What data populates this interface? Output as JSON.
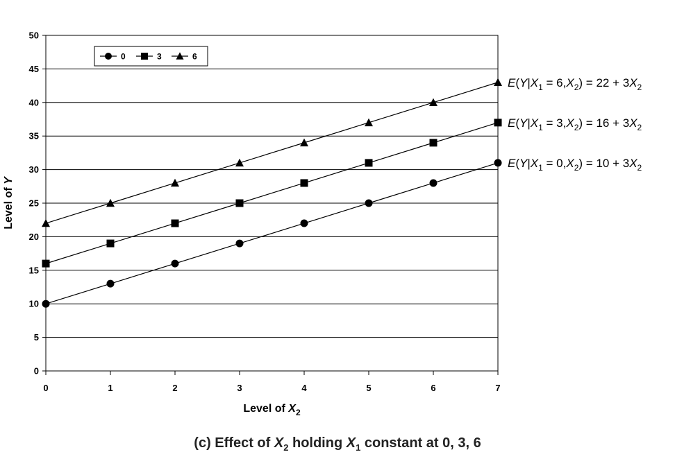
{
  "chart_data": {
    "type": "line",
    "x": [
      0,
      1,
      2,
      3,
      4,
      5,
      6,
      7
    ],
    "xlim": [
      0,
      7
    ],
    "ylim": [
      0,
      50
    ],
    "yticks": [
      0,
      5,
      10,
      15,
      20,
      25,
      30,
      35,
      40,
      45,
      50
    ],
    "xticks": [
      0,
      1,
      2,
      3,
      4,
      5,
      6,
      7
    ],
    "ylabel": "Level of Y",
    "xlabel": "Level of X2",
    "caption": "(c) Effect of X2 holding X1 constant at 0, 3, 6",
    "grid": "horizontal",
    "legend_position": "top-left",
    "series": [
      {
        "name": "0",
        "marker": "circle",
        "values": [
          10,
          13,
          16,
          19,
          22,
          25,
          28,
          31
        ],
        "equation": "E(Y|X1 = 0,X2) = 10 + 3X2"
      },
      {
        "name": "3",
        "marker": "square",
        "values": [
          16,
          19,
          22,
          25,
          28,
          31,
          34,
          37
        ],
        "equation": "E(Y|X1 = 3,X2) = 16 + 3X2"
      },
      {
        "name": "6",
        "marker": "triangle",
        "values": [
          22,
          25,
          28,
          31,
          34,
          37,
          40,
          43
        ],
        "equation": "E(Y|X1 = 6,X2) = 22 + 3X2"
      }
    ],
    "colors": {
      "line": "#000000",
      "grid": "#000000"
    }
  }
}
